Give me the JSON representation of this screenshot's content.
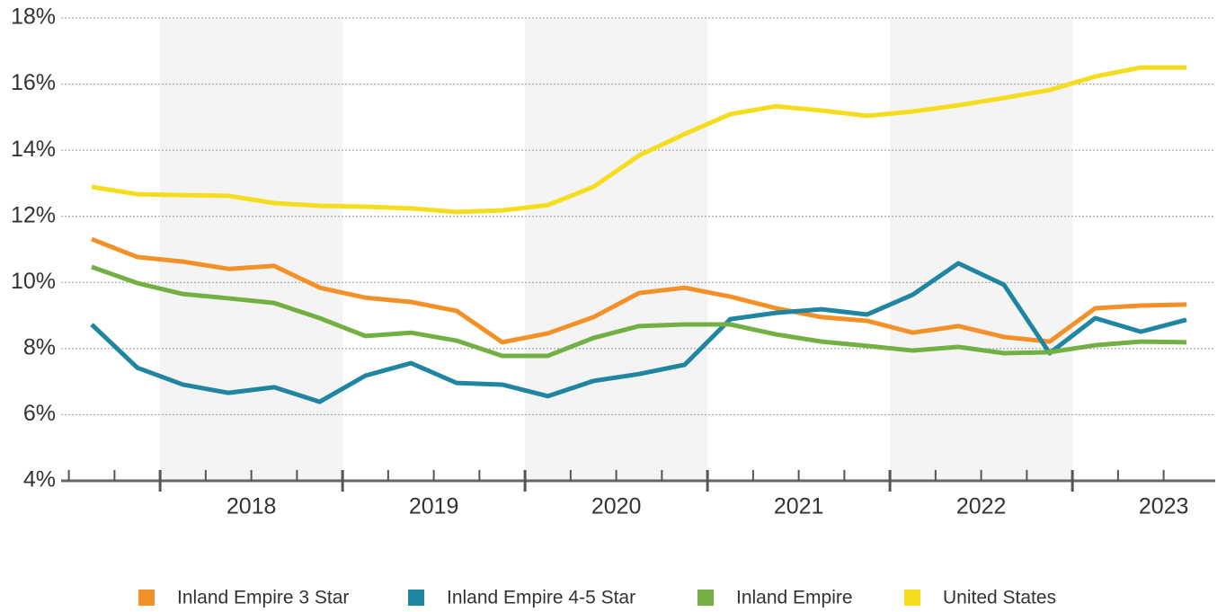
{
  "chart_data": {
    "type": "line",
    "categories": [
      null,
      null,
      "2018",
      null,
      null,
      null,
      "2019",
      null,
      null,
      null,
      "2020",
      null,
      null,
      null,
      "2021",
      null,
      null,
      null,
      "2022",
      null,
      null,
      null,
      "2023",
      null,
      null
    ],
    "series": [
      {
        "name": "Inland Empire 3 Star",
        "color": "#f39128",
        "values": [
          11.31,
          10.77,
          10.63,
          10.41,
          10.5,
          9.84,
          9.54,
          9.41,
          9.14,
          8.19,
          8.46,
          8.95,
          9.68,
          9.84,
          9.57,
          9.22,
          8.95,
          8.84,
          8.48,
          8.68,
          8.35,
          8.21,
          9.22,
          9.3,
          9.33
        ]
      },
      {
        "name": "Inland Empire 4-5 Star",
        "color": "#1f85a0",
        "values": [
          8.73,
          7.42,
          6.91,
          6.66,
          6.83,
          6.39,
          7.18,
          7.56,
          6.96,
          6.91,
          6.56,
          7.02,
          7.23,
          7.51,
          8.89,
          9.08,
          9.19,
          9.03,
          9.63,
          10.58,
          9.93,
          7.86,
          8.92,
          8.51,
          8.87
        ]
      },
      {
        "name": "Inland Empire",
        "color": "#72b043",
        "values": [
          10.47,
          9.98,
          9.65,
          9.52,
          9.38,
          8.92,
          8.38,
          8.48,
          8.24,
          7.78,
          7.78,
          8.32,
          8.68,
          8.73,
          8.73,
          8.43,
          8.21,
          8.08,
          7.94,
          8.05,
          7.86,
          7.89,
          8.1,
          8.21,
          8.19
        ]
      },
      {
        "name": "United States",
        "color": "#f5dd1e",
        "values": [
          12.89,
          12.67,
          12.64,
          12.62,
          12.4,
          12.32,
          12.29,
          12.24,
          12.13,
          12.18,
          12.34,
          12.89,
          13.84,
          14.49,
          15.09,
          15.33,
          15.2,
          15.04,
          15.17,
          15.36,
          15.58,
          15.82,
          16.23,
          16.5,
          16.5
        ]
      }
    ],
    "ylim": [
      4,
      18
    ],
    "yticks": [
      {
        "value": 4,
        "label": "4%"
      },
      {
        "value": 6,
        "label": "6%"
      },
      {
        "value": 8,
        "label": "8%"
      },
      {
        "value": 10,
        "label": "10%"
      },
      {
        "value": 12,
        "label": "12%"
      },
      {
        "value": 14,
        "label": "14%"
      },
      {
        "value": 16,
        "label": "16%"
      },
      {
        "value": 18,
        "label": "18%"
      }
    ],
    "grid": true,
    "legend": "bottom"
  }
}
